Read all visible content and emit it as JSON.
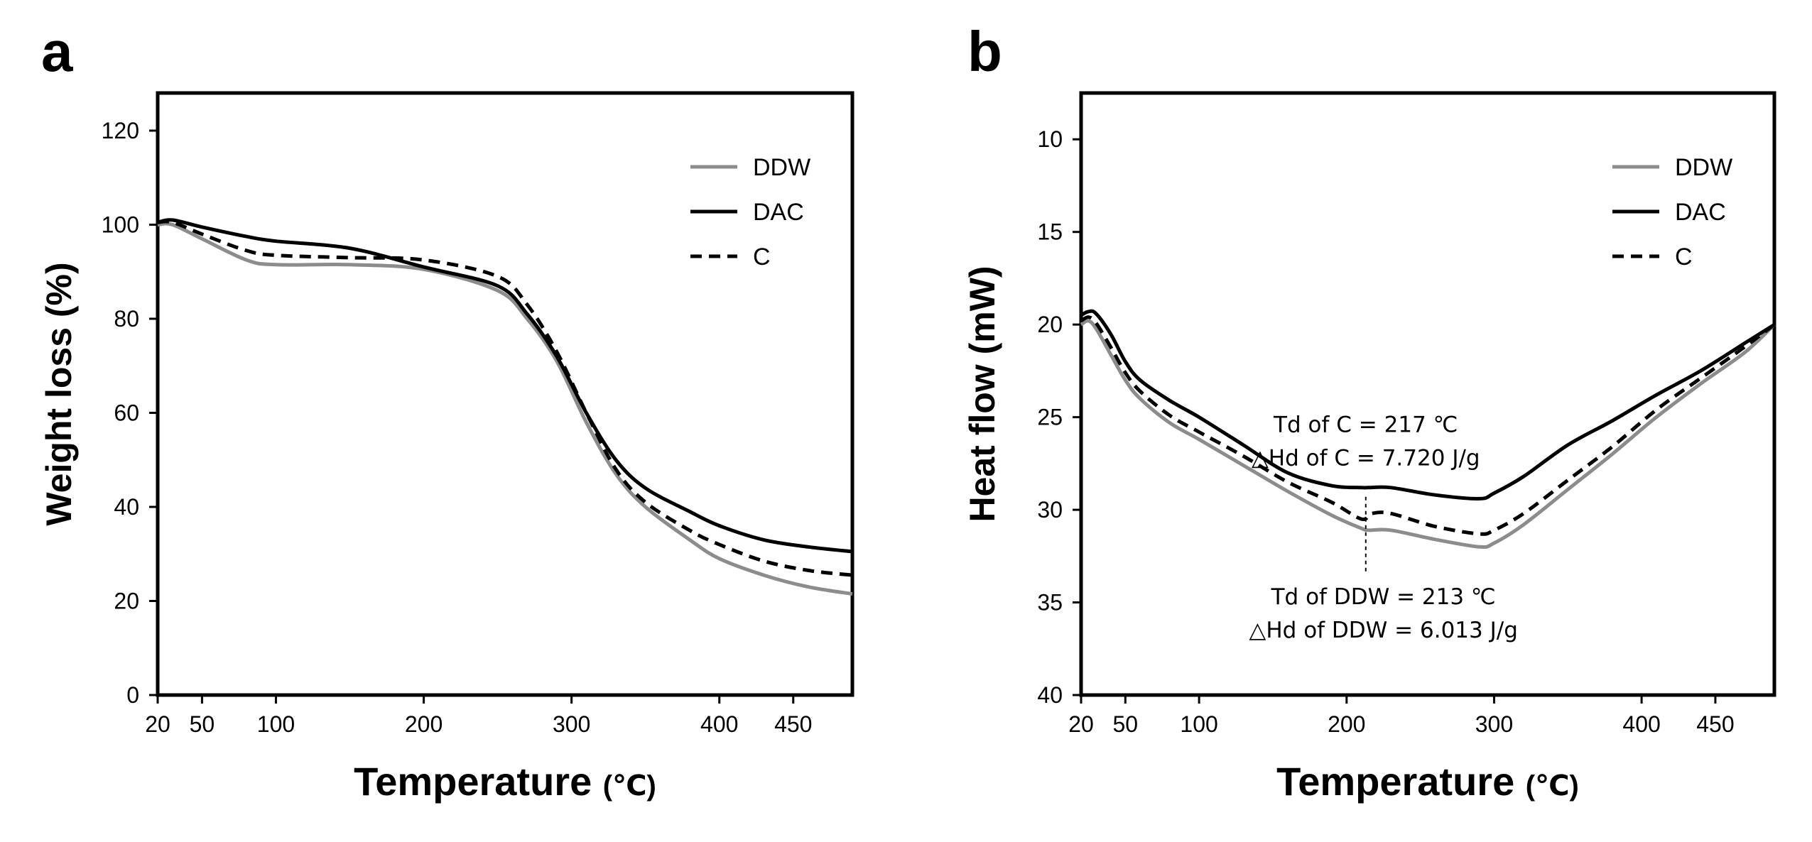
{
  "chart_data": [
    {
      "panel": "a",
      "type": "line",
      "xlabel": "Temperature",
      "xunit": "(℃)",
      "ylabel": "Weight loss (%)",
      "xlim": [
        20,
        490
      ],
      "ylim": [
        0,
        128
      ],
      "y_inverted": false,
      "xticks": [
        20,
        50,
        100,
        200,
        300,
        400,
        450
      ],
      "yticks": [
        0,
        20,
        40,
        60,
        80,
        100,
        120
      ],
      "legend_position": "top-right",
      "series": [
        {
          "name": "DDW",
          "color": "#8c8c8c",
          "dash": "solid",
          "x": [
            20,
            30,
            50,
            80,
            100,
            150,
            200,
            250,
            270,
            290,
            310,
            330,
            350,
            380,
            400,
            430,
            460,
            490
          ],
          "y": [
            100,
            100,
            97,
            92.5,
            91.5,
            91.5,
            90.5,
            86,
            80,
            71,
            58,
            47,
            40,
            33,
            29,
            25.5,
            23,
            21.5
          ]
        },
        {
          "name": "DAC",
          "color": "#000000",
          "dash": "solid",
          "x": [
            20,
            30,
            50,
            80,
            100,
            150,
            200,
            250,
            270,
            290,
            310,
            330,
            350,
            380,
            400,
            430,
            460,
            490
          ],
          "y": [
            100.5,
            101,
            99.5,
            97.5,
            96.5,
            95,
            91,
            87,
            81,
            72,
            60,
            50,
            44,
            39,
            36,
            33,
            31.5,
            30.5
          ]
        },
        {
          "name": "C",
          "color": "#000000",
          "dash": "dashed",
          "x": [
            20,
            30,
            50,
            80,
            100,
            150,
            200,
            250,
            270,
            290,
            310,
            330,
            350,
            380,
            400,
            430,
            460,
            490
          ],
          "y": [
            100.5,
            100.5,
            98,
            94.5,
            93.5,
            93,
            92.5,
            89,
            83,
            73,
            60,
            48,
            41,
            35,
            32,
            28.5,
            26.5,
            25.5
          ]
        }
      ],
      "annotations": []
    },
    {
      "panel": "b",
      "type": "line",
      "xlabel": "Temperature",
      "xunit": "(℃)",
      "ylabel": "Heat flow (mW)",
      "xlim": [
        20,
        490
      ],
      "ylim": [
        7.5,
        40
      ],
      "y_inverted": true,
      "xticks": [
        20,
        50,
        100,
        200,
        300,
        400,
        450
      ],
      "yticks": [
        10,
        15,
        20,
        25,
        30,
        35,
        40
      ],
      "legend_position": "top-right",
      "series": [
        {
          "name": "DDW",
          "color": "#8c8c8c",
          "dash": "solid",
          "x": [
            20,
            25,
            30,
            40,
            50,
            60,
            80,
            100,
            130,
            160,
            190,
            210,
            215,
            230,
            260,
            290,
            300,
            320,
            350,
            380,
            410,
            440,
            470,
            490
          ],
          "y": [
            20,
            19.8,
            20.2,
            21.6,
            23,
            24,
            25.3,
            26.2,
            27.6,
            29,
            30.3,
            31,
            31.1,
            31.1,
            31.6,
            32,
            31.8,
            30.8,
            28.9,
            27,
            25,
            23.2,
            21.5,
            20
          ]
        },
        {
          "name": "DAC",
          "color": "#000000",
          "dash": "solid",
          "x": [
            20,
            25,
            30,
            40,
            50,
            60,
            80,
            100,
            130,
            160,
            190,
            210,
            215,
            230,
            260,
            290,
            300,
            320,
            350,
            380,
            410,
            440,
            470,
            490
          ],
          "y": [
            19.5,
            19.3,
            19.4,
            20.5,
            22,
            23,
            24.1,
            25,
            26.5,
            28,
            28.7,
            28.8,
            28.8,
            28.8,
            29.2,
            29.4,
            29.1,
            28.2,
            26.5,
            25.2,
            23.8,
            22.5,
            21,
            20
          ]
        },
        {
          "name": "C",
          "color": "#000000",
          "dash": "dashed",
          "x": [
            20,
            25,
            30,
            40,
            50,
            60,
            80,
            100,
            130,
            160,
            190,
            210,
            217,
            230,
            260,
            290,
            300,
            320,
            350,
            380,
            410,
            440,
            470,
            490
          ],
          "y": [
            19.8,
            19.6,
            19.9,
            21.2,
            22.6,
            23.6,
            24.9,
            25.8,
            27.1,
            28.5,
            29.6,
            30.5,
            30.2,
            30.2,
            30.9,
            31.3,
            31.1,
            30.2,
            28.4,
            26.6,
            24.6,
            22.9,
            21.2,
            20
          ]
        }
      ],
      "annotations": [
        {
          "line1": "Td of C = 217 ℃",
          "line2": "△Hd of C = 7.720 J/g",
          "x": 213,
          "y": 25.8
        },
        {
          "line1": "Td of DDW = 213 ℃",
          "line2": "△Hd of DDW = 6.013 J/g",
          "x": 225,
          "y": 35.1
        }
      ],
      "reference_line": {
        "x": 213,
        "y_from": 29.3,
        "y_to": 33.4
      }
    }
  ]
}
